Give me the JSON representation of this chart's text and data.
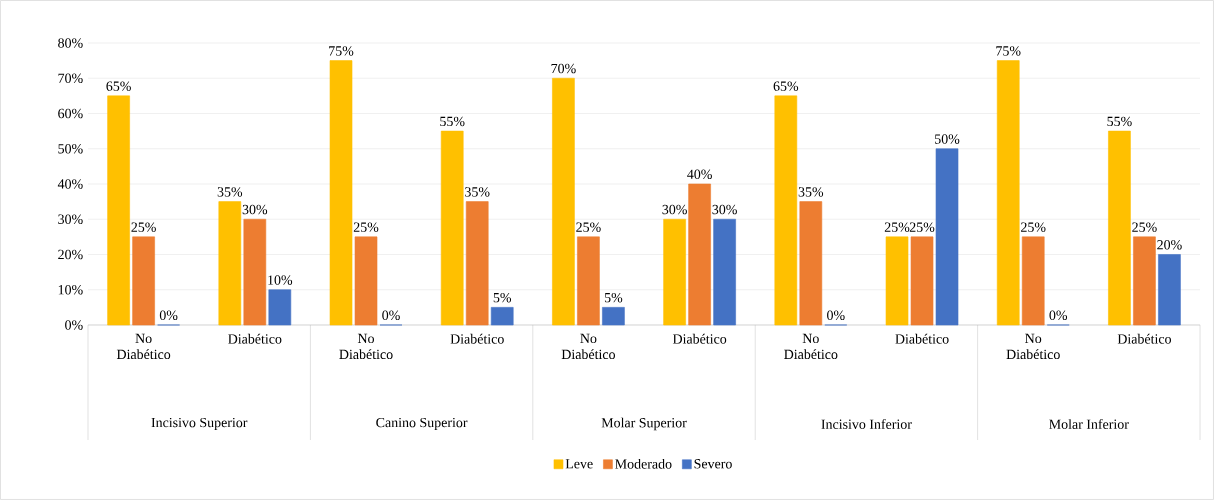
{
  "chart_data": {
    "type": "bar",
    "categories": [
      "No Diabético",
      "Diabético",
      "No Diabético",
      "Diabético",
      "No Diabético",
      "Diabético",
      "No Diabético",
      "Diabético",
      "No Diabético",
      "Diabético"
    ],
    "annotations": [
      "Incisivo Superior",
      "Canino Superior",
      "Molar Superior",
      "Incisivo Inferior",
      "Molar Inferior"
    ],
    "series": [
      {
        "name": "Leve",
        "color": "#ffc000",
        "values": [
          65,
          35,
          75,
          55,
          70,
          30,
          65,
          25,
          75,
          55
        ],
        "value_labels": [
          "65%",
          "35%",
          "75%",
          "55%",
          "70%",
          "30%",
          "65%",
          "25%",
          "75%",
          "55%"
        ]
      },
      {
        "name": "Moderado",
        "color": "#ed7d31",
        "values": [
          25,
          30,
          25,
          35,
          25,
          40,
          35,
          25,
          25,
          25
        ],
        "value_labels": [
          "25%",
          "30%",
          "25%",
          "35%",
          "25%",
          "40%",
          "35%",
          "25%",
          "25%",
          "25%"
        ]
      },
      {
        "name": "Severo",
        "color": "#4472c4",
        "values": [
          0,
          10,
          0,
          5,
          5,
          30,
          0,
          50,
          0,
          20
        ],
        "value_labels": [
          "0%",
          "10%",
          "0%",
          "5%",
          "5%",
          "30%",
          "0%",
          "50%",
          "0%",
          "20%"
        ]
      }
    ],
    "ylim": [
      0,
      80
    ],
    "yticks": [
      {
        "value": 0,
        "label": "0%"
      },
      {
        "value": 10,
        "label": "10%"
      },
      {
        "value": 20,
        "label": "20%"
      },
      {
        "value": 30,
        "label": "30%"
      },
      {
        "value": 40,
        "label": "40%"
      },
      {
        "value": 50,
        "label": "50%"
      },
      {
        "value": 60,
        "label": "60%"
      },
      {
        "value": 70,
        "label": "70%"
      },
      {
        "value": 80,
        "label": "80%"
      }
    ],
    "grid": "y",
    "legend": "bottom"
  }
}
